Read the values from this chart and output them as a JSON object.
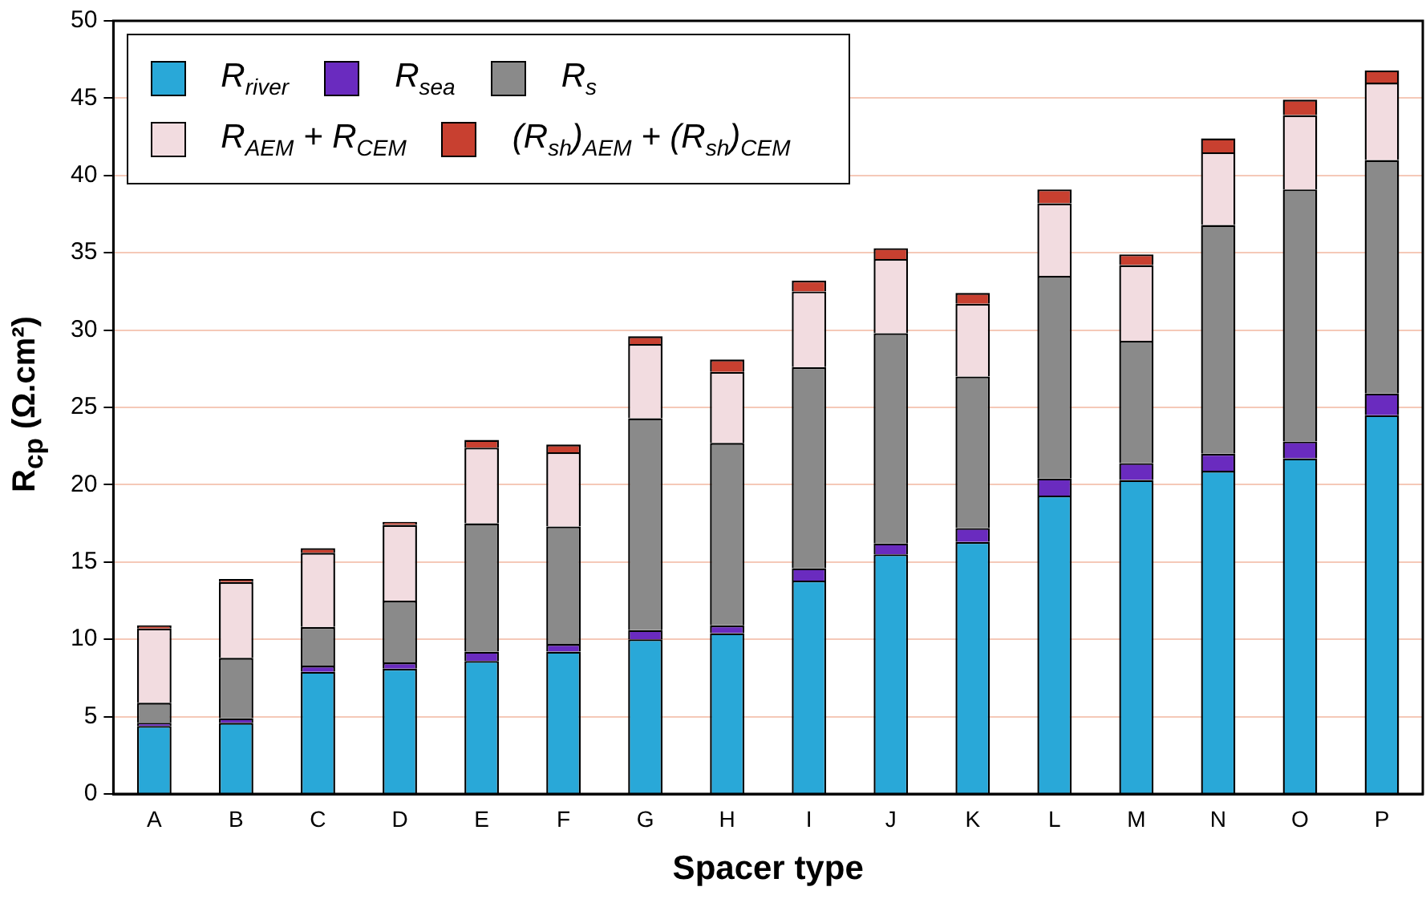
{
  "chart_data": {
    "type": "bar",
    "stacked": true,
    "xlabel": "Spacer type",
    "ylabel": "R$_{cp}$ (Ω.cm²)",
    "categories": [
      "A",
      "B",
      "C",
      "D",
      "E",
      "F",
      "G",
      "H",
      "I",
      "J",
      "K",
      "L",
      "M",
      "N",
      "O",
      "P"
    ],
    "ylim": [
      0,
      50
    ],
    "yticks": [
      0,
      5,
      10,
      15,
      20,
      25,
      30,
      35,
      40,
      45,
      50
    ],
    "grid": "y",
    "legend": "top left",
    "series": [
      {
        "name": "R$_{river}$",
        "color": "#29a8d8",
        "values": [
          4.4,
          4.6,
          7.9,
          8.1,
          8.6,
          9.2,
          10.0,
          10.4,
          13.8,
          15.5,
          16.3,
          19.3,
          20.3,
          20.9,
          21.7,
          24.5
        ]
      },
      {
        "name": "R$_{sea}$",
        "color": "#6a2bbf",
        "values": [
          0.2,
          0.3,
          0.4,
          0.4,
          0.6,
          0.5,
          0.6,
          0.5,
          0.8,
          0.7,
          0.9,
          1.1,
          1.1,
          1.1,
          1.1,
          1.4
        ]
      },
      {
        "name": "R$_{s}$",
        "color": "#8a8a8a",
        "values": [
          1.3,
          3.9,
          2.5,
          4.0,
          8.3,
          7.6,
          13.7,
          11.8,
          13.0,
          13.6,
          9.8,
          13.1,
          7.9,
          14.8,
          16.3,
          15.1
        ]
      },
      {
        "name": "R$_{AEM}$ + R$_{CEM}$",
        "color": "#f2dce0",
        "values": [
          4.8,
          4.9,
          4.8,
          4.9,
          4.9,
          4.8,
          4.8,
          4.6,
          4.9,
          4.8,
          4.7,
          4.7,
          4.9,
          4.7,
          4.8,
          5.0
        ]
      },
      {
        "name": "(R$_{sh}$)$_{AEM}$ + (R$_{sh}$)$_{CEM}$",
        "color": "#c84030",
        "values": [
          0.2,
          0.2,
          0.3,
          0.2,
          0.5,
          0.5,
          0.5,
          0.8,
          0.7,
          0.7,
          0.7,
          0.9,
          0.7,
          0.9,
          1.0,
          0.8
        ]
      }
    ]
  }
}
